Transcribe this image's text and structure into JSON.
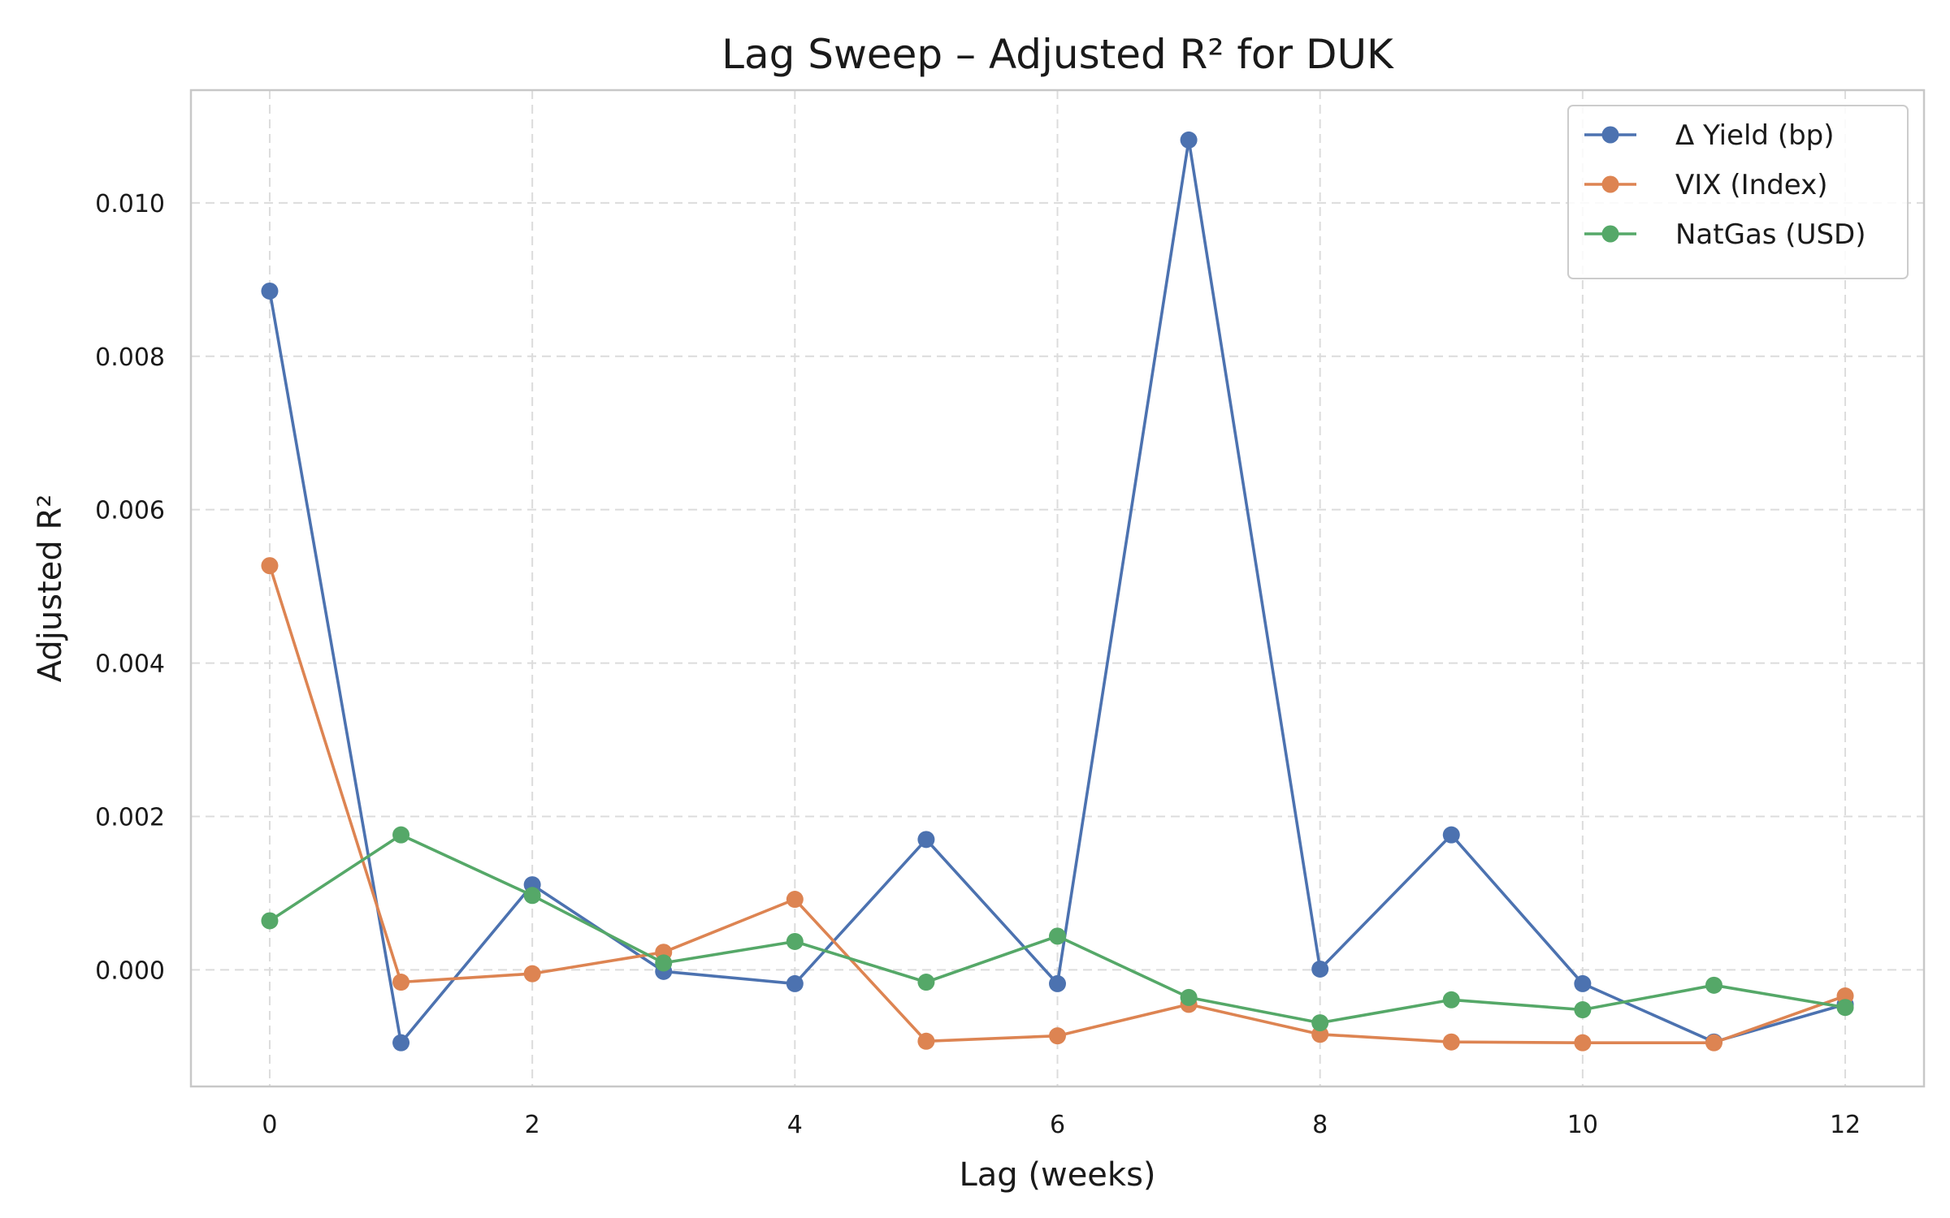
{
  "chart_data": {
    "type": "line",
    "title": "Lag Sweep – Adjusted R² for DUK",
    "xlabel": "Lag (weeks)",
    "ylabel": "Adjusted R²",
    "x": [
      0,
      1,
      2,
      3,
      4,
      5,
      6,
      7,
      8,
      9,
      10,
      11,
      12
    ],
    "xlim": [
      -0.6,
      12.6
    ],
    "ylim": [
      -0.00152,
      0.01147
    ],
    "xticks": [
      0,
      2,
      4,
      6,
      8,
      10,
      12
    ],
    "xtick_labels": [
      "0",
      "2",
      "4",
      "6",
      "8",
      "10",
      "12"
    ],
    "yticks": [
      0.0,
      0.002,
      0.004,
      0.006,
      0.008,
      0.01
    ],
    "ytick_labels": [
      "0.000",
      "0.002",
      "0.004",
      "0.006",
      "0.008",
      "0.010"
    ],
    "grid": true,
    "legend_position": "top-right",
    "series": [
      {
        "name": "Δ Yield (bp)",
        "color": "#4c72b0",
        "values": [
          0.00885,
          -0.00095,
          0.00111,
          -2e-05,
          -0.00018,
          0.0017,
          -0.00018,
          0.01082,
          1e-05,
          0.00176,
          -0.00018,
          -0.00094,
          -0.00045
        ]
      },
      {
        "name": "VIX (Index)",
        "color": "#dd8452",
        "values": [
          0.00527,
          -0.00016,
          -5e-05,
          0.00023,
          0.00092,
          -0.00093,
          -0.00086,
          -0.00045,
          -0.00084,
          -0.00094,
          -0.00095,
          -0.00095,
          -0.00034
        ]
      },
      {
        "name": "NatGas (USD)",
        "color": "#55a868",
        "values": [
          0.00064,
          0.00176,
          0.00097,
          9e-05,
          0.00037,
          -0.00016,
          0.00044,
          -0.00036,
          -0.00069,
          -0.00039,
          -0.00052,
          -0.0002,
          -0.00049
        ]
      }
    ]
  }
}
